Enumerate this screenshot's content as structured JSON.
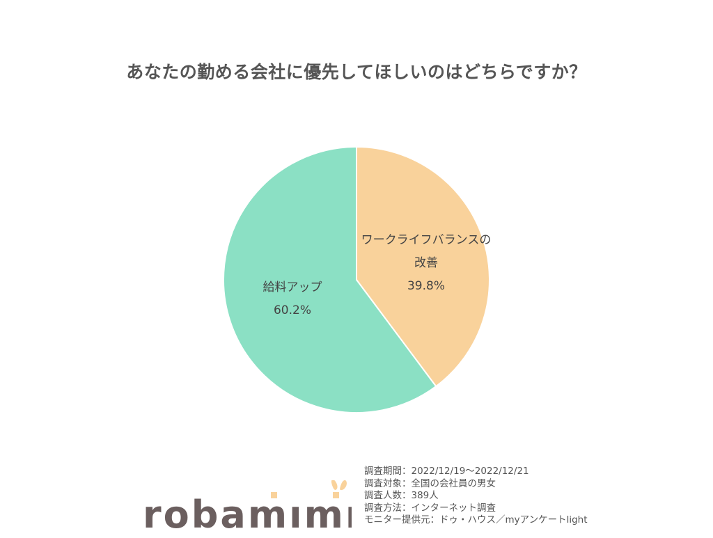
{
  "chart_data": {
    "type": "pie",
    "title": "あなたの勤める会社に優先してほしいのはどちらですか？",
    "start": "top",
    "direction": "clockwise",
    "slices": [
      {
        "label_lines": [
          "ワークライフバランスの",
          "改善"
        ],
        "value": 39.8,
        "value_label": "39.8%",
        "color": "#F9D29B"
      },
      {
        "label_lines": [
          "給料アップ"
        ],
        "value": 60.2,
        "value_label": "60.2%",
        "color": "#8BE0C4"
      }
    ]
  },
  "logo": {
    "text": "robamimi",
    "text_color": "#6B5F5F",
    "accent_color": "#F9D29B"
  },
  "notes": [
    "調査期間：2022/12/19～2022/12/21",
    "調査対象：全国の会社員の男女",
    "調査人数：389人",
    "調査方法：インターネット調査",
    "モニター提供元：ドゥ・ハウス／myアンケートlight"
  ]
}
